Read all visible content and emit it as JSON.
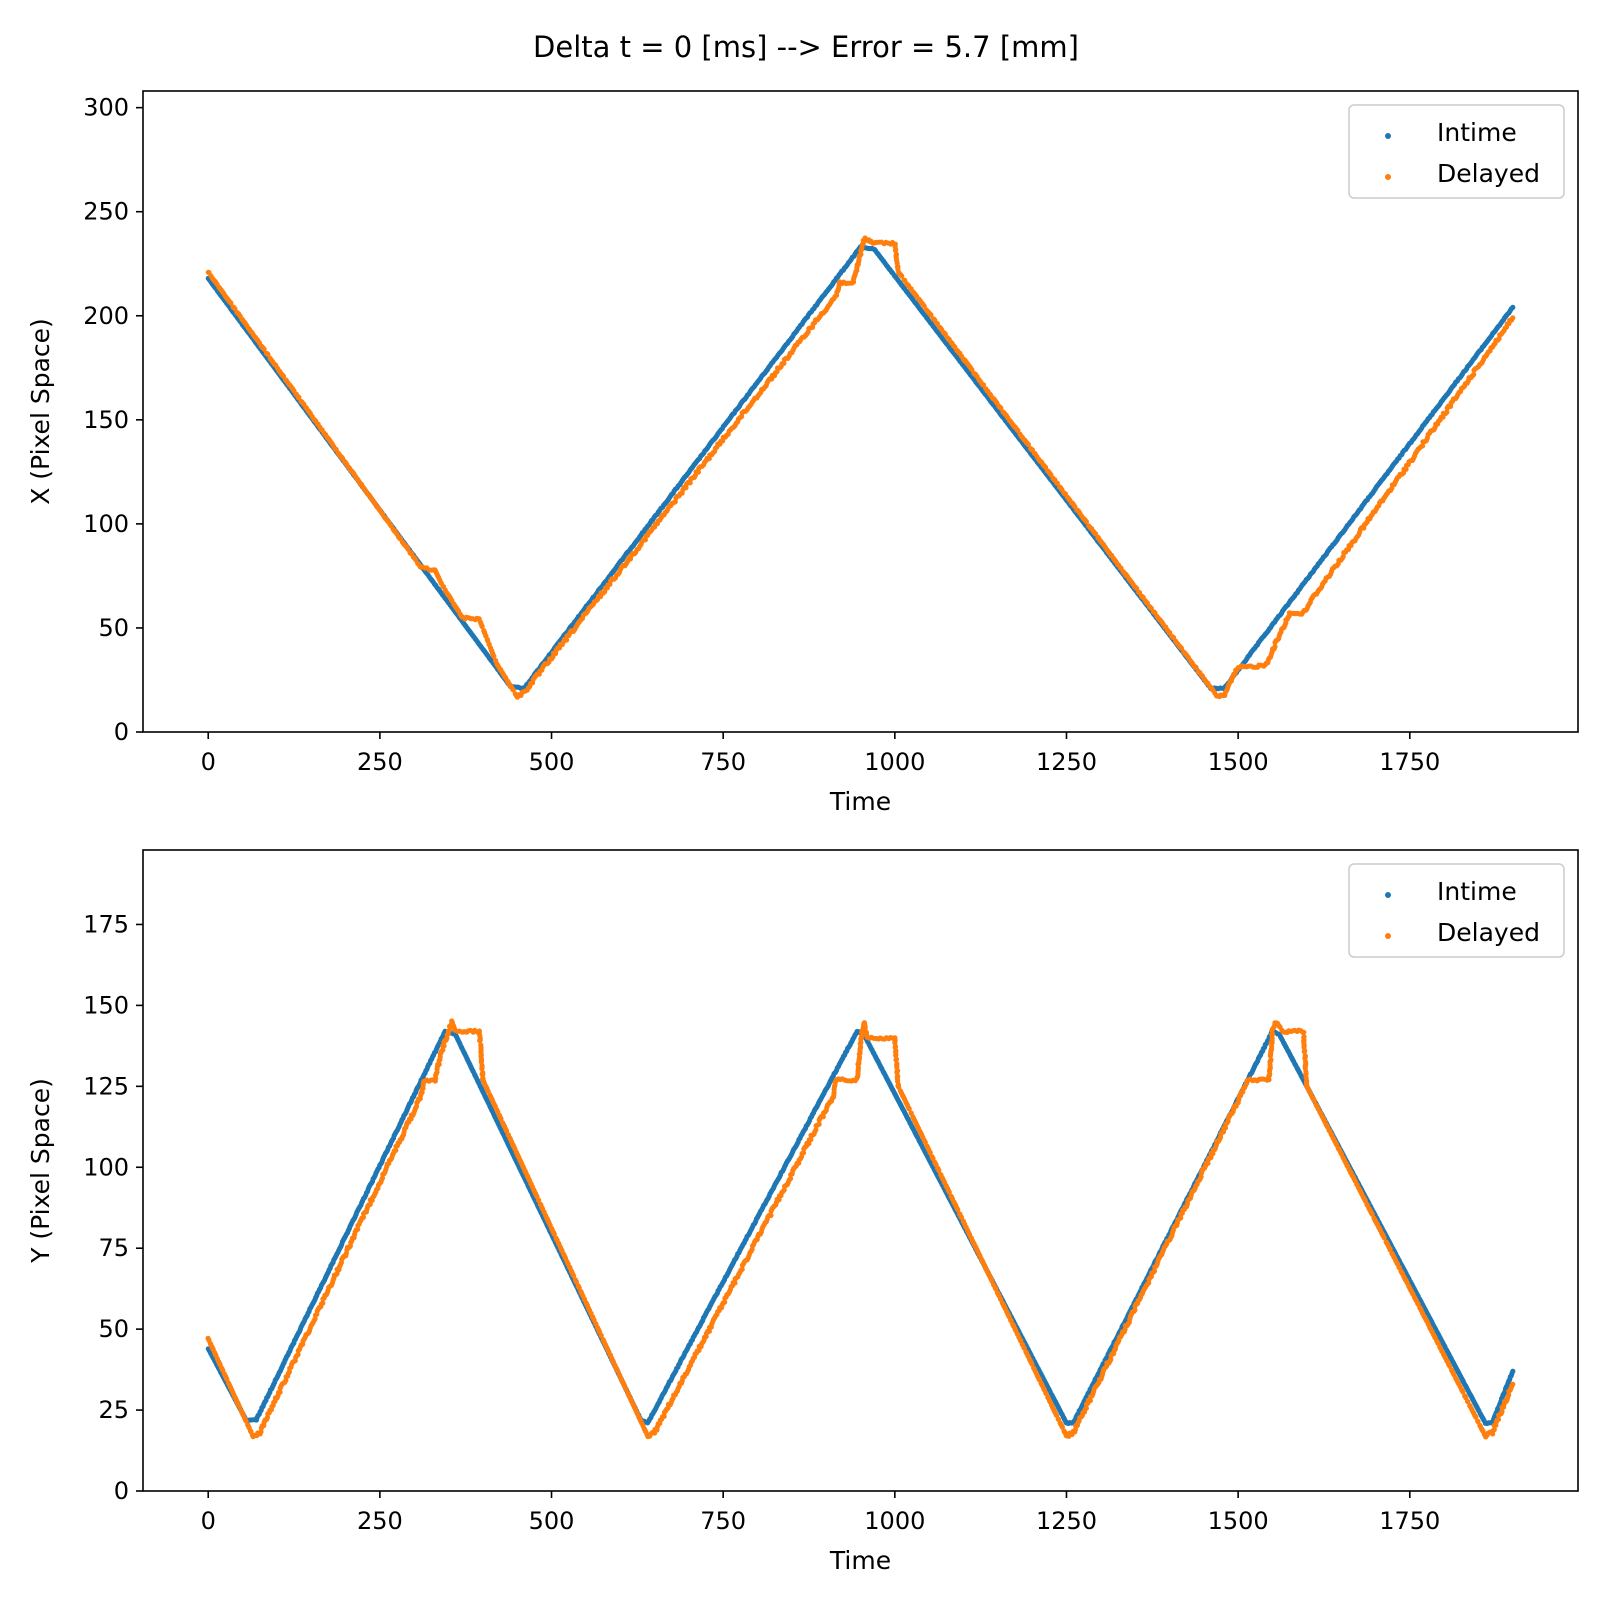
{
  "figure": {
    "suptitle": "Delta t = 0 [ms] --> Error = 5.7 [mm]"
  },
  "colors": {
    "intime": "#1f77b4",
    "delayed": "#ff7f0e",
    "axis": "#000000",
    "legend_border": "#cccccc"
  },
  "chart_data": [
    {
      "type": "scatter",
      "title": "",
      "xlabel": "Time",
      "ylabel": "X (Pixel Space)",
      "xlim": [
        -95,
        1995
      ],
      "ylim": [
        0,
        308
      ],
      "xticks": [
        0,
        250,
        500,
        750,
        1000,
        1250,
        1500,
        1750
      ],
      "yticks": [
        0,
        50,
        100,
        150,
        200,
        250,
        300
      ],
      "legend": {
        "position": "upper right",
        "entries": [
          "Intime",
          "Delayed"
        ]
      },
      "grid": false,
      "series": [
        {
          "name": "Intime",
          "color": "#1f77b4",
          "trace": [
            [
              0,
              218
            ],
            [
              440,
              22
            ],
            [
              460,
              21
            ],
            [
              950,
              233
            ],
            [
              970,
              232
            ],
            [
              1460,
              21
            ],
            [
              1480,
              21
            ],
            [
              1900,
              204
            ]
          ]
        },
        {
          "name": "Delayed",
          "color": "#ff7f0e",
          "trace": [
            [
              0,
              221
            ],
            [
              310,
              79
            ],
            [
              330,
              78
            ],
            [
              340,
              71
            ],
            [
              370,
              55
            ],
            [
              395,
              54
            ],
            [
              420,
              33
            ],
            [
              450,
              17
            ],
            [
              460,
              19
            ],
            [
              915,
              210
            ],
            [
              920,
              216
            ],
            [
              940,
              216
            ],
            [
              955,
              237
            ],
            [
              965,
              236
            ],
            [
              965,
              235
            ],
            [
              1000,
              235
            ],
            [
              1005,
              221
            ],
            [
              1470,
              17
            ],
            [
              1480,
              18
            ],
            [
              1500,
              31
            ],
            [
              1540,
              32
            ],
            [
              1565,
              50
            ],
            [
              1575,
              57
            ],
            [
              1595,
              57
            ],
            [
              1610,
              65
            ],
            [
              1900,
              199
            ]
          ]
        }
      ]
    },
    {
      "type": "scatter",
      "title": "",
      "xlabel": "Time",
      "ylabel": "Y (Pixel Space)",
      "xlim": [
        -95,
        1995
      ],
      "ylim": [
        0,
        198
      ],
      "xticks": [
        0,
        250,
        500,
        750,
        1000,
        1250,
        1500,
        1750
      ],
      "yticks": [
        0,
        25,
        50,
        75,
        100,
        125,
        150,
        175
      ],
      "legend": {
        "position": "upper right",
        "entries": [
          "Intime",
          "Delayed"
        ]
      },
      "grid": false,
      "series": [
        {
          "name": "Intime",
          "color": "#1f77b4",
          "trace": [
            [
              0,
              44
            ],
            [
              55,
              22
            ],
            [
              70,
              22
            ],
            [
              345,
              142
            ],
            [
              360,
              141
            ],
            [
              630,
              22
            ],
            [
              640,
              21
            ],
            [
              945,
              142
            ],
            [
              955,
              141
            ],
            [
              1250,
              21
            ],
            [
              1260,
              21
            ],
            [
              1550,
              142
            ],
            [
              1560,
              141
            ],
            [
              1860,
              21
            ],
            [
              1870,
              21
            ],
            [
              1900,
              37
            ]
          ]
        },
        {
          "name": "Delayed",
          "color": "#ff7f0e",
          "trace": [
            [
              0,
              47
            ],
            [
              65,
              17
            ],
            [
              75,
              18
            ],
            [
              310,
              122
            ],
            [
              315,
              127
            ],
            [
              330,
              127
            ],
            [
              340,
              136
            ],
            [
              355,
              145
            ],
            [
              360,
              142
            ],
            [
              395,
              142
            ],
            [
              400,
              127
            ],
            [
              640,
              17
            ],
            [
              650,
              18
            ],
            [
              910,
              122
            ],
            [
              915,
              127
            ],
            [
              945,
              127
            ],
            [
              950,
              138
            ],
            [
              955,
              145
            ],
            [
              960,
              140
            ],
            [
              1000,
              140
            ],
            [
              1005,
              125
            ],
            [
              1250,
              17
            ],
            [
              1260,
              18
            ],
            [
              1515,
              127
            ],
            [
              1545,
              127
            ],
            [
              1550,
              142
            ],
            [
              1555,
              145
            ],
            [
              1565,
              142
            ],
            [
              1595,
              142
            ],
            [
              1600,
              125
            ],
            [
              1860,
              17
            ],
            [
              1870,
              18
            ],
            [
              1900,
              33
            ]
          ]
        }
      ]
    }
  ]
}
